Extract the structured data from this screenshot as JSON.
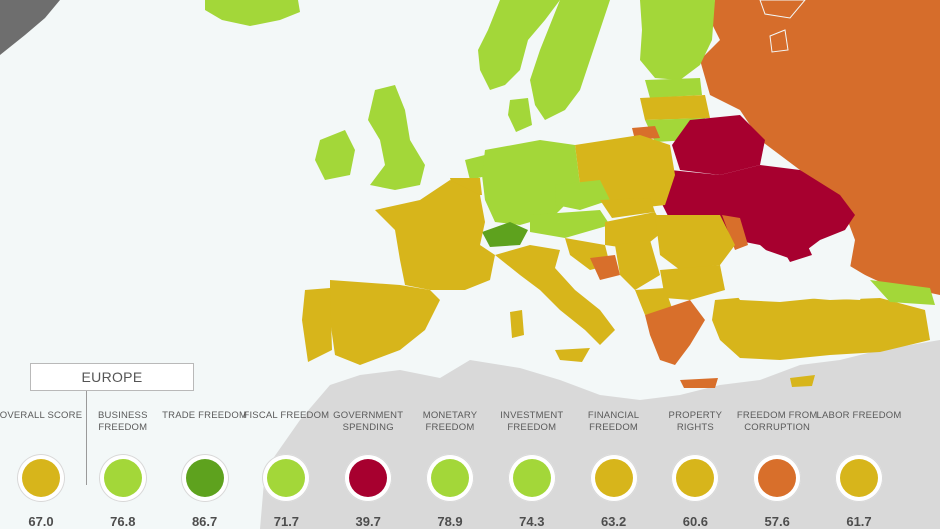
{
  "region": {
    "name": "EUROPE"
  },
  "colors": {
    "sea": "#f3f8f8",
    "land_other": "#d9d9d9",
    "mostly_free": "#a3d739",
    "free": "#5ea21e",
    "moderately_free": "#d7b51b",
    "mostly_unfree": "#d86f2b",
    "repressed": "#a7002f",
    "russia": "#d66d2b"
  },
  "metrics": [
    {
      "label": "OVERALL SCORE",
      "value": "67.0",
      "color": "#d7b51b"
    },
    {
      "label": "BUSINESS FREEDOM",
      "value": "76.8",
      "color": "#a3d739"
    },
    {
      "label": "TRADE FREEDOM",
      "value": "86.7",
      "color": "#5ea21e"
    },
    {
      "label": "FISCAL FREEDOM",
      "value": "71.7",
      "color": "#a3d739"
    },
    {
      "label": "GOVERNMENT SPENDING",
      "value": "39.7",
      "color": "#a7002f"
    },
    {
      "label": "MONETARY FREEDOM",
      "value": "78.9",
      "color": "#a3d739"
    },
    {
      "label": "INVESTMENT FREEDOM",
      "value": "74.3",
      "color": "#a3d739"
    },
    {
      "label": "FINANCIAL FREEDOM",
      "value": "63.2",
      "color": "#d7b51b"
    },
    {
      "label": "PROPERTY RIGHTS",
      "value": "60.6",
      "color": "#d7b51b"
    },
    {
      "label": "FREEDOM FROM CORRUPTION",
      "value": "57.6",
      "color": "#d86f2b"
    },
    {
      "label": "LABOR FREEDOM",
      "value": "61.7",
      "color": "#d7b51b"
    }
  ]
}
